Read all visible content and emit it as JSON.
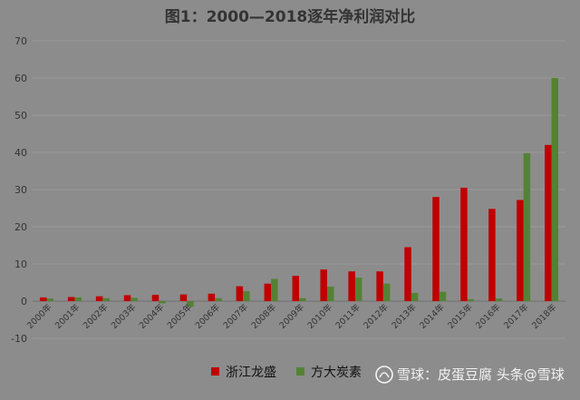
{
  "chart_data": {
    "type": "bar",
    "title": "图1：2000—2018逐年净利润对比",
    "xlabel": "",
    "ylabel": "",
    "ylim": [
      -10,
      70
    ],
    "yticks": [
      "70",
      "60",
      "50",
      "40",
      "30",
      "20",
      "10",
      "0",
      "-10"
    ],
    "ytick_values": [
      70,
      60,
      50,
      40,
      30,
      20,
      10,
      0,
      -10
    ],
    "grid": true,
    "legend_position": "bottom",
    "categories": [
      "2000年",
      "2001年",
      "2002年",
      "2003年",
      "2004年",
      "2005年",
      "2006年",
      "2007年",
      "2008年",
      "2009年",
      "2010年",
      "2011年",
      "2012年",
      "2013年",
      "2014年",
      "2015年",
      "2016年",
      "2017年",
      "2018年"
    ],
    "series": [
      {
        "name": "浙江龙盛",
        "color": "#c00000",
        "values": [
          1.0,
          1.1,
          1.3,
          1.6,
          1.7,
          1.8,
          2.0,
          4.0,
          4.7,
          6.8,
          8.5,
          8.0,
          8.0,
          14.5,
          28.0,
          30.5,
          24.8,
          27.2,
          42.0
        ]
      },
      {
        "name": "方大炭素",
        "color": "#548235",
        "values": [
          0.7,
          1.0,
          0.8,
          0.9,
          -0.6,
          -1.5,
          0.8,
          2.7,
          6.0,
          0.8,
          3.9,
          6.3,
          4.7,
          2.2,
          2.5,
          0.5,
          0.7,
          39.8,
          60.0
        ]
      }
    ]
  },
  "watermark": {
    "text": "雪球：皮蛋豆腐 头条@雪球"
  }
}
